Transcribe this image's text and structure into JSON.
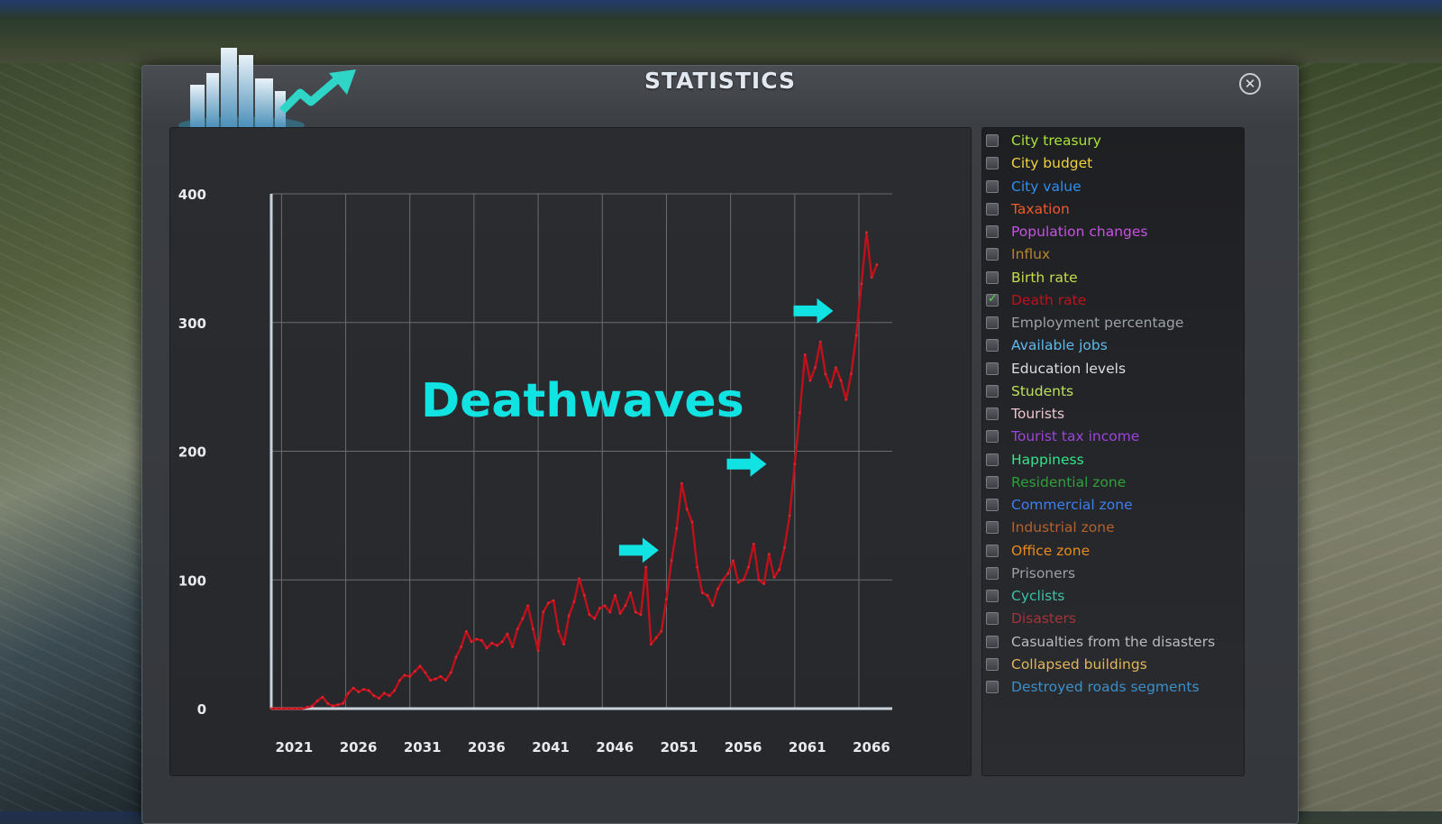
{
  "window": {
    "title": "STATISTICS"
  },
  "chart_data": {
    "type": "line",
    "title": "",
    "overlay_text": "Deathwaves",
    "xlabel": "",
    "ylabel": "",
    "xlim": [
      2021,
      2067.5
    ],
    "ylim": [
      0,
      400
    ],
    "y_ticks": [
      "0",
      "100",
      "200",
      "300",
      "400"
    ],
    "x_ticks": [
      "2021",
      "2026",
      "2031",
      "2036",
      "2041",
      "2046",
      "2051",
      "2056",
      "2061",
      "2066"
    ],
    "x_tick_values": [
      2021,
      2026,
      2031,
      2036,
      2041,
      2046,
      2051,
      2056,
      2061,
      2066
    ],
    "y_tick_values": [
      0,
      100,
      200,
      300,
      400
    ],
    "grid": true,
    "line_color": "#c0111b",
    "annotation_color": "#11e3e3",
    "series": [
      {
        "name": "Death rate",
        "x": [
          2020.2,
          2020.6,
          2021.0,
          2021.4,
          2021.8,
          2022.2,
          2022.6,
          2023.0,
          2023.4,
          2023.8,
          2024.2,
          2024.6,
          2025.0,
          2025.4,
          2025.8,
          2026.2,
          2026.6,
          2027.0,
          2027.4,
          2027.8,
          2028.2,
          2028.6,
          2029.0,
          2029.4,
          2029.8,
          2030.2,
          2030.6,
          2031.0,
          2031.4,
          2031.8,
          2032.2,
          2032.6,
          2033.0,
          2033.4,
          2033.8,
          2034.2,
          2034.6,
          2035.0,
          2035.4,
          2035.8,
          2036.2,
          2036.6,
          2037.0,
          2037.4,
          2037.8,
          2038.2,
          2038.6,
          2039.0,
          2039.4,
          2039.8,
          2040.2,
          2040.6,
          2041.0,
          2041.4,
          2041.8,
          2042.2,
          2042.6,
          2043.0,
          2043.4,
          2043.8,
          2044.2,
          2044.6,
          2045.0,
          2045.4,
          2045.8,
          2046.2,
          2046.6,
          2047.0,
          2047.4,
          2047.8,
          2048.2,
          2048.6,
          2049.0,
          2049.4,
          2049.8,
          2050.2,
          2050.6,
          2051.0,
          2051.4,
          2051.8,
          2052.2,
          2052.6,
          2053.0,
          2053.4,
          2053.8,
          2054.2,
          2054.6,
          2055.0,
          2055.4,
          2055.8,
          2056.2,
          2056.6,
          2057.0,
          2057.4,
          2057.8,
          2058.2,
          2058.6,
          2059.0,
          2059.4,
          2059.8,
          2060.2,
          2060.6,
          2061.0,
          2061.4,
          2061.8,
          2062.2,
          2062.6,
          2063.0,
          2063.4,
          2063.8,
          2064.2,
          2064.6,
          2065.0,
          2065.4,
          2065.8,
          2066.2,
          2066.6,
          2067.0,
          2067.4
        ],
        "values": [
          0,
          0,
          0,
          0,
          0,
          0,
          0,
          1,
          2,
          6,
          9,
          4,
          2,
          3,
          4,
          12,
          16,
          13,
          15,
          14,
          10,
          8,
          12,
          10,
          14,
          22,
          26,
          25,
          29,
          33,
          28,
          22,
          23,
          25,
          22,
          28,
          40,
          48,
          60,
          52,
          54,
          53,
          47,
          51,
          49,
          52,
          58,
          48,
          62,
          70,
          80,
          62,
          45,
          75,
          82,
          84,
          60,
          50,
          72,
          83,
          101,
          88,
          73,
          70,
          78,
          80,
          75,
          88,
          74,
          80,
          90,
          75,
          73,
          110,
          50,
          55,
          60,
          85,
          115,
          140,
          175,
          155,
          145,
          110,
          90,
          88,
          80,
          93,
          100,
          105,
          115,
          98,
          100,
          110,
          128,
          100,
          97,
          120,
          102,
          108,
          125,
          150,
          190,
          230,
          275,
          255,
          265,
          285,
          260,
          250,
          265,
          255,
          240,
          260,
          290,
          330,
          370,
          335,
          345
        ]
      }
    ],
    "annotations": [
      {
        "type": "arrow",
        "x": 2050.4,
        "y": 123
      },
      {
        "type": "arrow",
        "x": 2058.8,
        "y": 190
      },
      {
        "type": "arrow",
        "x": 2064.0,
        "y": 309
      }
    ]
  },
  "legend": {
    "items": [
      {
        "label": "City treasury",
        "color": "#a8e33a",
        "checked": false
      },
      {
        "label": "City budget",
        "color": "#f2d23c",
        "checked": false
      },
      {
        "label": "City value",
        "color": "#2f8ff0",
        "checked": false
      },
      {
        "label": "Taxation",
        "color": "#f0592a",
        "checked": false
      },
      {
        "label": "Population changes",
        "color": "#c653e2",
        "checked": false
      },
      {
        "label": "Influx",
        "color": "#b8862a",
        "checked": false
      },
      {
        "label": "Birth rate",
        "color": "#c8dd4a",
        "checked": false
      },
      {
        "label": "Death rate",
        "color": "#c0111b",
        "checked": true
      },
      {
        "label": "Employment percentage",
        "color": "#9aa2a8",
        "checked": false
      },
      {
        "label": "Available jobs",
        "color": "#5fb9ea",
        "checked": false
      },
      {
        "label": "Education levels",
        "color": "#dcdfe2",
        "checked": false
      },
      {
        "label": "Students",
        "color": "#bde25a",
        "checked": false
      },
      {
        "label": "Tourists",
        "color": "#ecc6cc",
        "checked": false
      },
      {
        "label": "Tourist tax income",
        "color": "#9a45d8",
        "checked": false
      },
      {
        "label": "Happiness",
        "color": "#36e48a",
        "checked": false
      },
      {
        "label": "Residential zone",
        "color": "#2fa03a",
        "checked": false
      },
      {
        "label": "Commercial zone",
        "color": "#3c7ff0",
        "checked": false
      },
      {
        "label": "Industrial zone",
        "color": "#b5612a",
        "checked": false
      },
      {
        "label": "Office zone",
        "color": "#e88a1c",
        "checked": false
      },
      {
        "label": "Prisoners",
        "color": "#9aa0a6",
        "checked": false
      },
      {
        "label": "Cyclists",
        "color": "#3cc0a6",
        "checked": false
      },
      {
        "label": "Disasters",
        "color": "#a8323a",
        "checked": false
      },
      {
        "label": "Casualties from the disasters",
        "color": "#b7bcc1",
        "checked": false
      },
      {
        "label": "Collapsed buildings",
        "color": "#e0b658",
        "checked": false
      },
      {
        "label": "Destroyed roads segments",
        "color": "#3b8fc9",
        "checked": false
      }
    ]
  }
}
